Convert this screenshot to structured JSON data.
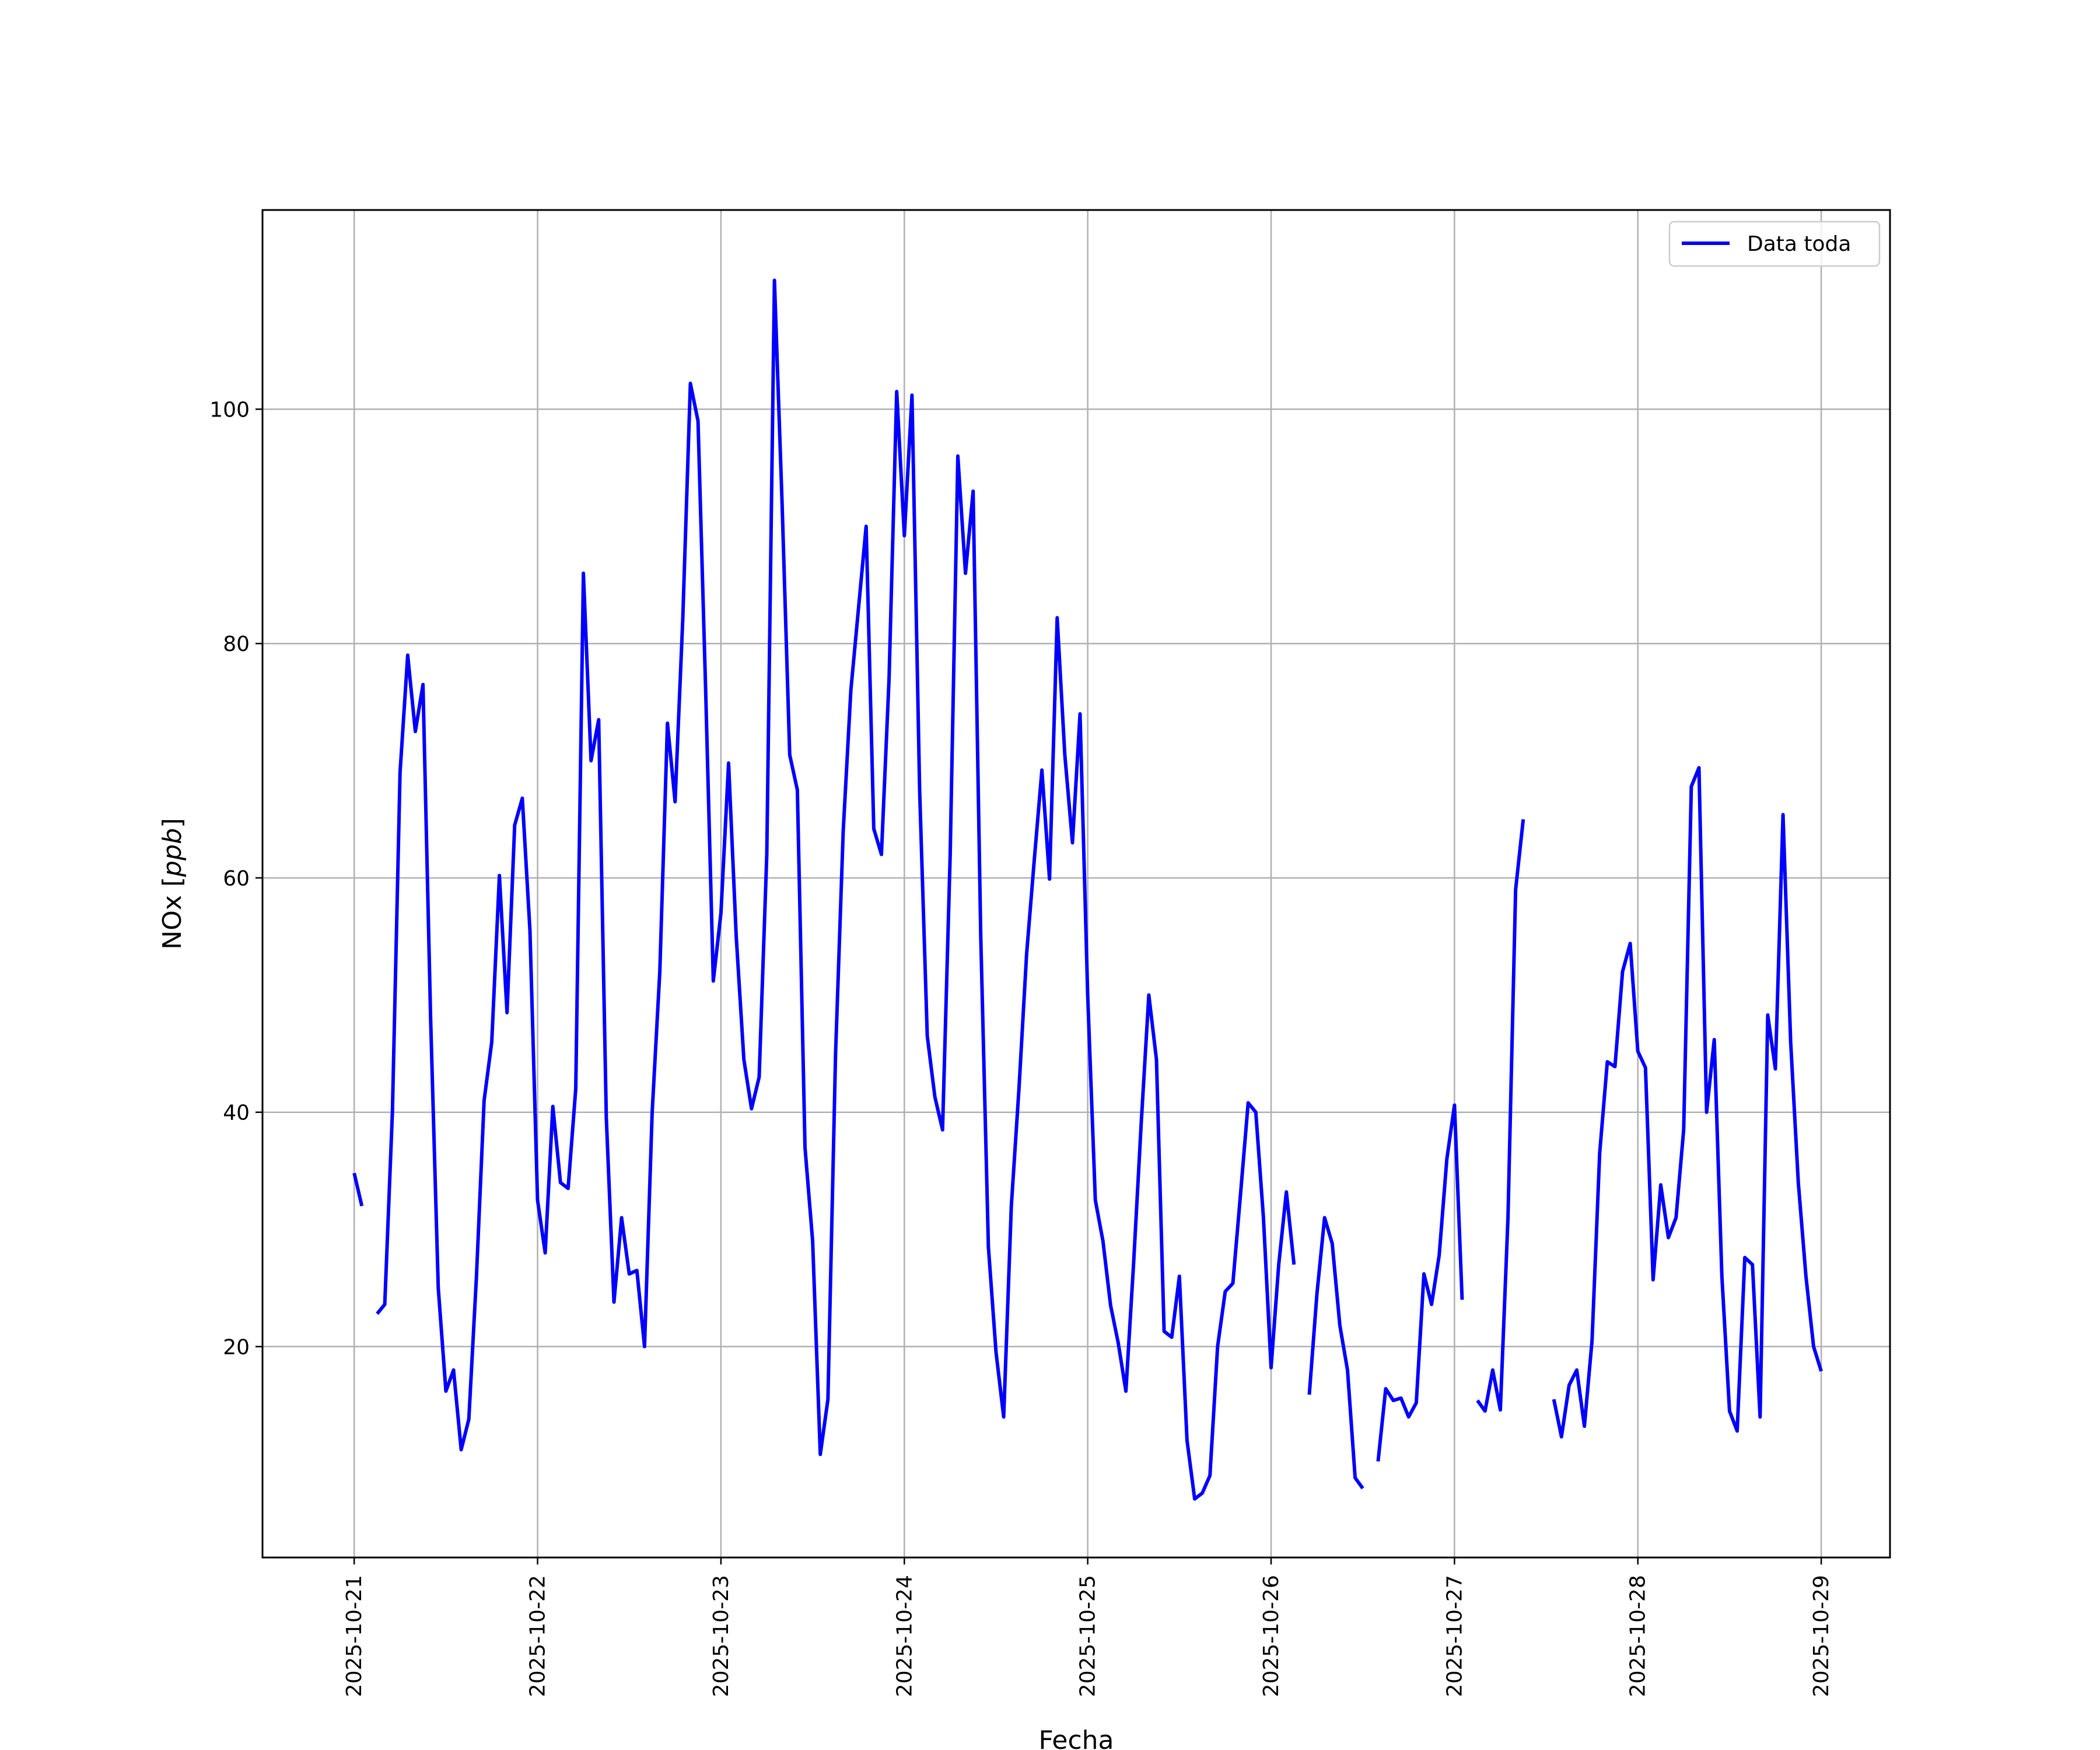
{
  "chart_data": {
    "type": "line",
    "title": "",
    "xlabel": "Fecha",
    "ylabel": "NOx [ppb]",
    "ylabel_main": "NOx [",
    "ylabel_unit": "ppb",
    "ylabel_close": "]",
    "xlim": [
      "2025-10-20 12:00",
      "2025-10-29 09:00"
    ],
    "ylim": [
      2,
      117
    ],
    "grid": true,
    "legend_position": "top-right",
    "x_ticks": [
      "2025-10-21",
      "2025-10-22",
      "2025-10-23",
      "2025-10-24",
      "2025-10-25",
      "2025-10-26",
      "2025-10-27",
      "2025-10-28",
      "2025-10-29"
    ],
    "y_ticks": [
      20,
      40,
      60,
      80,
      100
    ],
    "series": [
      {
        "name": "Data toda",
        "color": "#0000ff",
        "segments": [
          [
            [
              "2025-10-21 00:00",
              34.8
            ],
            [
              "2025-10-21 01:00",
              32.0
            ]
          ],
          [
            [
              "2025-10-21 03:00",
              22.8
            ],
            [
              "2025-10-21 04:00",
              23.6
            ],
            [
              "2025-10-21 05:00",
              40.0
            ],
            [
              "2025-10-21 06:00",
              69.0
            ],
            [
              "2025-10-21 07:00",
              79.0
            ],
            [
              "2025-10-21 08:00",
              72.5
            ],
            [
              "2025-10-21 09:00",
              76.5
            ],
            [
              "2025-10-21 10:00",
              48.0
            ],
            [
              "2025-10-21 11:00",
              25.0
            ],
            [
              "2025-10-21 12:00",
              16.2
            ],
            [
              "2025-10-21 13:00",
              18.0
            ],
            [
              "2025-10-21 14:00",
              11.2
            ],
            [
              "2025-10-21 15:00",
              13.8
            ],
            [
              "2025-10-21 16:00",
              26.0
            ],
            [
              "2025-10-21 17:00",
              41.0
            ],
            [
              "2025-10-21 18:00",
              46.0
            ],
            [
              "2025-10-21 19:00",
              60.2
            ],
            [
              "2025-10-21 20:00",
              48.5
            ],
            [
              "2025-10-21 21:00",
              64.5
            ],
            [
              "2025-10-21 22:00",
              66.8
            ],
            [
              "2025-10-21 23:00",
              55.5
            ],
            [
              "2025-10-22 00:00",
              32.5
            ],
            [
              "2025-10-22 01:00",
              28.0
            ],
            [
              "2025-10-22 02:00",
              40.5
            ],
            [
              "2025-10-22 03:00",
              34.0
            ],
            [
              "2025-10-22 04:00",
              33.5
            ],
            [
              "2025-10-22 05:00",
              42.0
            ],
            [
              "2025-10-22 06:00",
              86.0
            ],
            [
              "2025-10-22 07:00",
              70.0
            ],
            [
              "2025-10-22 08:00",
              73.5
            ],
            [
              "2025-10-22 09:00",
              39.5
            ],
            [
              "2025-10-22 10:00",
              23.8
            ],
            [
              "2025-10-22 11:00",
              31.0
            ],
            [
              "2025-10-22 12:00",
              26.2
            ],
            [
              "2025-10-22 13:00",
              26.5
            ],
            [
              "2025-10-22 14:00",
              20.0
            ],
            [
              "2025-10-22 15:00",
              40.0
            ],
            [
              "2025-10-22 16:00",
              52.0
            ],
            [
              "2025-10-22 17:00",
              73.2
            ],
            [
              "2025-10-22 18:00",
              66.5
            ],
            [
              "2025-10-22 19:00",
              82.0
            ],
            [
              "2025-10-22 20:00",
              102.2
            ],
            [
              "2025-10-22 21:00",
              99.0
            ],
            [
              "2025-10-22 22:00",
              76.0
            ],
            [
              "2025-10-22 23:00",
              51.2
            ],
            [
              "2025-10-23 00:00",
              57.0
            ],
            [
              "2025-10-23 01:00",
              69.8
            ],
            [
              "2025-10-23 02:00",
              55.0
            ],
            [
              "2025-10-23 03:00",
              44.5
            ],
            [
              "2025-10-23 04:00",
              40.3
            ],
            [
              "2025-10-23 05:00",
              43.0
            ],
            [
              "2025-10-23 06:00",
              62.0
            ],
            [
              "2025-10-23 07:00",
              111.0
            ],
            [
              "2025-10-23 08:00",
              92.0
            ],
            [
              "2025-10-23 09:00",
              70.5
            ],
            [
              "2025-10-23 10:00",
              67.5
            ],
            [
              "2025-10-23 11:00",
              37.0
            ],
            [
              "2025-10-23 12:00",
              29.0
            ],
            [
              "2025-10-23 13:00",
              10.8
            ],
            [
              "2025-10-23 14:00",
              15.5
            ],
            [
              "2025-10-23 15:00",
              45.0
            ],
            [
              "2025-10-23 16:00",
              64.0
            ],
            [
              "2025-10-23 17:00",
              76.0
            ],
            [
              "2025-10-23 18:00",
              83.0
            ],
            [
              "2025-10-23 19:00",
              90.0
            ],
            [
              "2025-10-23 20:00",
              64.2
            ],
            [
              "2025-10-23 21:00",
              62.0
            ],
            [
              "2025-10-23 22:00",
              77.0
            ],
            [
              "2025-10-23 23:00",
              101.5
            ],
            [
              "2025-10-24 00:00",
              89.2
            ],
            [
              "2025-10-24 01:00",
              101.2
            ],
            [
              "2025-10-24 02:00",
              67.5
            ],
            [
              "2025-10-24 03:00",
              46.5
            ],
            [
              "2025-10-24 04:00",
              41.3
            ],
            [
              "2025-10-24 05:00",
              38.5
            ],
            [
              "2025-10-24 06:00",
              62.0
            ],
            [
              "2025-10-24 07:00",
              96.0
            ],
            [
              "2025-10-24 08:00",
              86.0
            ],
            [
              "2025-10-24 09:00",
              93.0
            ],
            [
              "2025-10-24 10:00",
              55.0
            ],
            [
              "2025-10-24 11:00",
              28.5
            ],
            [
              "2025-10-24 12:00",
              19.5
            ],
            [
              "2025-10-24 13:00",
              14.0
            ],
            [
              "2025-10-24 14:00",
              32.0
            ],
            [
              "2025-10-24 15:00",
              42.0
            ],
            [
              "2025-10-24 16:00",
              53.5
            ],
            [
              "2025-10-24 17:00",
              61.5
            ],
            [
              "2025-10-24 18:00",
              69.2
            ],
            [
              "2025-10-24 19:00",
              59.9
            ],
            [
              "2025-10-24 20:00",
              82.2
            ],
            [
              "2025-10-24 21:00",
              70.5
            ],
            [
              "2025-10-24 22:00",
              63.0
            ],
            [
              "2025-10-24 23:00",
              74.0
            ],
            [
              "2025-10-25 00:00",
              50.0
            ],
            [
              "2025-10-25 01:00",
              32.5
            ],
            [
              "2025-10-25 02:00",
              29.0
            ],
            [
              "2025-10-25 03:00",
              23.5
            ],
            [
              "2025-10-25 04:00",
              20.3
            ],
            [
              "2025-10-25 05:00",
              16.2
            ],
            [
              "2025-10-25 06:00",
              27.0
            ],
            [
              "2025-10-25 07:00",
              39.0
            ],
            [
              "2025-10-25 08:00",
              50.0
            ],
            [
              "2025-10-25 09:00",
              44.5
            ],
            [
              "2025-10-25 10:00",
              21.3
            ],
            [
              "2025-10-25 11:00",
              20.8
            ],
            [
              "2025-10-25 12:00",
              26.0
            ],
            [
              "2025-10-25 13:00",
              12.0
            ],
            [
              "2025-10-25 14:00",
              7.0
            ],
            [
              "2025-10-25 15:00",
              7.5
            ],
            [
              "2025-10-25 16:00",
              9.0
            ],
            [
              "2025-10-25 17:00",
              20.0
            ],
            [
              "2025-10-25 18:00",
              24.7
            ],
            [
              "2025-10-25 19:00",
              25.4
            ],
            [
              "2025-10-25 20:00",
              33.0
            ],
            [
              "2025-10-25 21:00",
              40.8
            ],
            [
              "2025-10-25 22:00",
              40.0
            ],
            [
              "2025-10-25 23:00",
              31.0
            ],
            [
              "2025-10-26 00:00",
              18.2
            ],
            [
              "2025-10-26 01:00",
              27.0
            ],
            [
              "2025-10-26 02:00",
              33.2
            ],
            [
              "2025-10-26 03:00",
              27.0
            ]
          ],
          [
            [
              "2025-10-26 05:00",
              15.9
            ],
            [
              "2025-10-26 06:00",
              24.5
            ],
            [
              "2025-10-26 07:00",
              31.0
            ],
            [
              "2025-10-26 08:00",
              28.8
            ],
            [
              "2025-10-26 09:00",
              21.8
            ],
            [
              "2025-10-26 10:00",
              18.0
            ],
            [
              "2025-10-26 11:00",
              8.8
            ],
            [
              "2025-10-26 12:00",
              7.9
            ]
          ],
          [
            [
              "2025-10-26 14:00",
              10.2
            ],
            [
              "2025-10-26 15:00",
              16.4
            ],
            [
              "2025-10-26 16:00",
              15.4
            ],
            [
              "2025-10-26 17:00",
              15.6
            ],
            [
              "2025-10-26 18:00",
              14.0
            ],
            [
              "2025-10-26 19:00",
              15.2
            ],
            [
              "2025-10-26 20:00",
              26.2
            ],
            [
              "2025-10-26 21:00",
              23.6
            ],
            [
              "2025-10-26 22:00",
              27.8
            ],
            [
              "2025-10-26 23:00",
              36.0
            ],
            [
              "2025-10-27 00:00",
              40.6
            ],
            [
              "2025-10-27 01:00",
              24.0
            ]
          ],
          [
            [
              "2025-10-27 03:00",
              15.4
            ],
            [
              "2025-10-27 04:00",
              14.5
            ],
            [
              "2025-10-27 05:00",
              18.0
            ],
            [
              "2025-10-27 06:00",
              14.6
            ],
            [
              "2025-10-27 07:00",
              31.0
            ],
            [
              "2025-10-27 08:00",
              59.0
            ],
            [
              "2025-10-27 09:00",
              65.0
            ]
          ],
          [
            [
              "2025-10-27 13:00",
              15.5
            ],
            [
              "2025-10-27 14:00",
              12.3
            ],
            [
              "2025-10-27 15:00",
              16.7
            ],
            [
              "2025-10-27 16:00",
              18.0
            ],
            [
              "2025-10-27 17:00",
              13.2
            ],
            [
              "2025-10-27 18:00",
              20.5
            ],
            [
              "2025-10-27 19:00",
              36.5
            ],
            [
              "2025-10-27 20:00",
              44.3
            ],
            [
              "2025-10-27 21:00",
              43.9
            ],
            [
              "2025-10-27 22:00",
              52.0
            ],
            [
              "2025-10-27 23:00",
              54.4
            ],
            [
              "2025-10-28 00:00",
              45.2
            ],
            [
              "2025-10-28 01:00",
              43.8
            ],
            [
              "2025-10-28 02:00",
              25.7
            ],
            [
              "2025-10-28 03:00",
              33.8
            ],
            [
              "2025-10-28 04:00",
              29.3
            ],
            [
              "2025-10-28 05:00",
              31.0
            ],
            [
              "2025-10-28 06:00",
              38.5
            ],
            [
              "2025-10-28 07:00",
              67.8
            ],
            [
              "2025-10-28 08:00",
              69.4
            ],
            [
              "2025-10-28 09:00",
              40.0
            ],
            [
              "2025-10-28 10:00",
              46.2
            ],
            [
              "2025-10-28 11:00",
              26.0
            ],
            [
              "2025-10-28 12:00",
              14.5
            ],
            [
              "2025-10-28 13:00",
              12.8
            ],
            [
              "2025-10-28 14:00",
              27.6
            ],
            [
              "2025-10-28 15:00",
              27.0
            ],
            [
              "2025-10-28 16:00",
              14.0
            ],
            [
              "2025-10-28 17:00",
              48.3
            ],
            [
              "2025-10-28 18:00",
              43.7
            ],
            [
              "2025-10-28 19:00",
              65.4
            ],
            [
              "2025-10-28 20:00",
              46.0
            ],
            [
              "2025-10-28 21:00",
              34.0
            ],
            [
              "2025-10-28 22:00",
              26.0
            ],
            [
              "2025-10-28 23:00",
              20.0
            ],
            [
              "2025-10-29 00:00",
              17.9
            ]
          ]
        ]
      }
    ]
  }
}
